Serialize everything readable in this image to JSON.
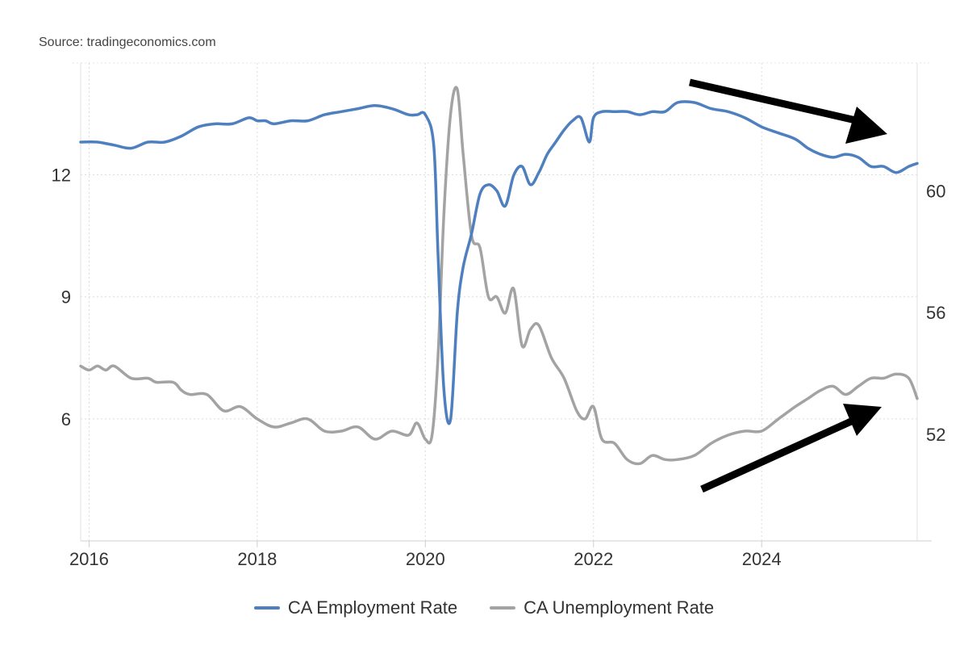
{
  "source": "Source: tradingeconomics.com",
  "chart_data": {
    "type": "line",
    "title": "",
    "xlabel": "",
    "x_range": [
      2015.9,
      2025.85
    ],
    "x_ticks": [
      2016,
      2018,
      2020,
      2022,
      2024
    ],
    "y_left": {
      "range": [
        3,
        14.75
      ],
      "ticks": [
        6,
        9,
        12
      ]
    },
    "y_right": {
      "range": [
        48.5,
        64.2
      ],
      "ticks": [
        52,
        56,
        60
      ]
    },
    "grid": true,
    "legend_position": "bottom",
    "series": [
      {
        "name": "CA Unemployment Rate",
        "axis": "left",
        "color": "#a3a3a3",
        "x": [
          2015.9,
          2016.0,
          2016.1,
          2016.2,
          2016.3,
          2016.5,
          2016.7,
          2016.8,
          2017.0,
          2017.1,
          2017.2,
          2017.4,
          2017.6,
          2017.8,
          2018.0,
          2018.2,
          2018.4,
          2018.6,
          2018.8,
          2019.0,
          2019.2,
          2019.4,
          2019.6,
          2019.8,
          2019.9,
          2020.0,
          2020.08,
          2020.15,
          2020.22,
          2020.3,
          2020.38,
          2020.45,
          2020.55,
          2020.65,
          2020.75,
          2020.85,
          2020.95,
          2021.05,
          2021.15,
          2021.25,
          2021.35,
          2021.5,
          2021.65,
          2021.8,
          2021.9,
          2022.0,
          2022.1,
          2022.25,
          2022.4,
          2022.55,
          2022.7,
          2022.85,
          2023.0,
          2023.2,
          2023.4,
          2023.6,
          2023.8,
          2024.0,
          2024.2,
          2024.4,
          2024.55,
          2024.7,
          2024.85,
          2025.0,
          2025.15,
          2025.3,
          2025.45,
          2025.6,
          2025.75,
          2025.85
        ],
        "values": [
          7.3,
          7.2,
          7.3,
          7.2,
          7.3,
          7.0,
          7.0,
          6.9,
          6.9,
          6.7,
          6.6,
          6.6,
          6.2,
          6.3,
          6.0,
          5.8,
          5.9,
          6.0,
          5.7,
          5.7,
          5.8,
          5.5,
          5.7,
          5.6,
          5.9,
          5.5,
          5.6,
          7.5,
          11.0,
          13.5,
          14.1,
          12.5,
          10.5,
          10.2,
          9.0,
          9.0,
          8.6,
          9.2,
          7.8,
          8.2,
          8.3,
          7.5,
          7.0,
          6.2,
          6.0,
          6.3,
          5.5,
          5.4,
          5.0,
          4.9,
          5.1,
          5.0,
          5.0,
          5.1,
          5.4,
          5.6,
          5.7,
          5.7,
          6.0,
          6.3,
          6.5,
          6.7,
          6.8,
          6.6,
          6.8,
          7.0,
          7.0,
          7.1,
          7.0,
          6.5
        ]
      },
      {
        "name": "CA Employment Rate",
        "axis": "right",
        "color": "#4e7fbf",
        "x": [
          2015.9,
          2016.1,
          2016.3,
          2016.5,
          2016.7,
          2016.9,
          2017.1,
          2017.3,
          2017.5,
          2017.7,
          2017.9,
          2018.0,
          2018.1,
          2018.2,
          2018.4,
          2018.6,
          2018.8,
          2019.0,
          2019.2,
          2019.4,
          2019.6,
          2019.8,
          2019.9,
          2020.0,
          2020.1,
          2020.15,
          2020.22,
          2020.3,
          2020.38,
          2020.45,
          2020.55,
          2020.65,
          2020.75,
          2020.85,
          2020.95,
          2021.05,
          2021.15,
          2021.25,
          2021.35,
          2021.45,
          2021.55,
          2021.65,
          2021.75,
          2021.85,
          2021.95,
          2022.0,
          2022.1,
          2022.25,
          2022.4,
          2022.55,
          2022.7,
          2022.85,
          2023.0,
          2023.2,
          2023.4,
          2023.6,
          2023.8,
          2024.0,
          2024.2,
          2024.4,
          2024.55,
          2024.7,
          2024.85,
          2025.0,
          2025.15,
          2025.3,
          2025.45,
          2025.6,
          2025.75,
          2025.85
        ],
        "values": [
          61.6,
          61.6,
          61.5,
          61.4,
          61.6,
          61.6,
          61.8,
          62.1,
          62.2,
          62.2,
          62.4,
          62.3,
          62.3,
          62.2,
          62.3,
          62.3,
          62.5,
          62.6,
          62.7,
          62.8,
          62.7,
          62.5,
          62.5,
          62.5,
          61.5,
          58.0,
          53.5,
          52.5,
          56.0,
          57.5,
          58.6,
          59.9,
          60.2,
          60.0,
          59.5,
          60.5,
          60.8,
          60.2,
          60.6,
          61.2,
          61.6,
          62.0,
          62.3,
          62.4,
          61.6,
          62.4,
          62.6,
          62.6,
          62.6,
          62.5,
          62.6,
          62.6,
          62.9,
          62.9,
          62.7,
          62.6,
          62.4,
          62.1,
          61.9,
          61.7,
          61.4,
          61.2,
          61.1,
          61.2,
          61.1,
          60.8,
          60.8,
          60.6,
          60.8,
          60.9
        ]
      }
    ]
  }
}
